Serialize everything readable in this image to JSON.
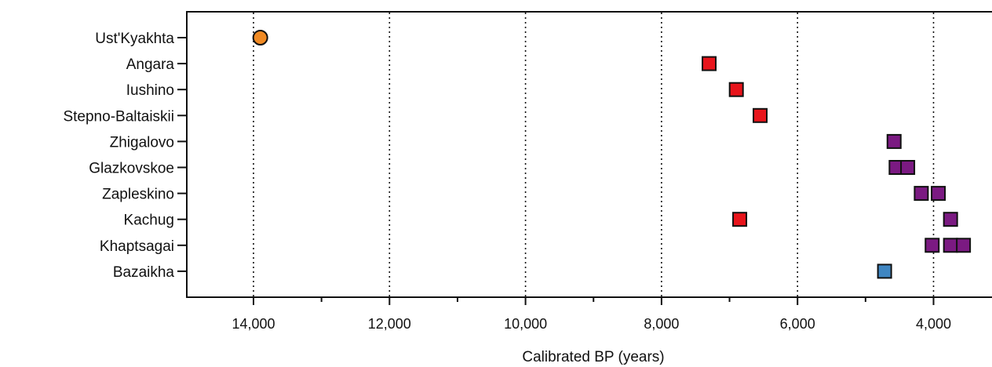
{
  "chart_data": {
    "type": "scatter",
    "title": "",
    "xlabel": "Calibrated BP (years)",
    "ylabel": "",
    "xlim": [
      15000,
      3000
    ],
    "x_reversed": true,
    "x_major_ticks": [
      14000,
      12000,
      10000,
      8000,
      6000,
      4000
    ],
    "x_major_tick_labels": [
      "14,000",
      "12,000",
      "10,000",
      "8,000",
      "6,000",
      "4,000"
    ],
    "x_minor_ticks": [
      13000,
      11000,
      9000,
      7000,
      5000
    ],
    "gridlines_at_major_ticks": true,
    "grid_style": "dotted vertical",
    "categories": [
      "Ust'Kyakhta",
      "Angara",
      "Iushino",
      "Stepno-Baltaiskii",
      "Zhigalovo",
      "Glazkovskoe",
      "Zapleskino",
      "Kachug",
      "Khaptsagai",
      "Bazaikha"
    ],
    "marker_colors": {
      "orange": "#f08a24",
      "red": "#e8141b",
      "purple": "#7b1a82",
      "blue": "#3f86c2"
    },
    "points": [
      {
        "site": "Ust'Kyakhta",
        "x": 13900,
        "marker": "circle",
        "color": "orange"
      },
      {
        "site": "Angara",
        "x": 7300,
        "marker": "square",
        "color": "red"
      },
      {
        "site": "Iushino",
        "x": 6900,
        "marker": "square",
        "color": "red"
      },
      {
        "site": "Stepno-Baltaiskii",
        "x": 6550,
        "marker": "square",
        "color": "red"
      },
      {
        "site": "Zhigalovo",
        "x": 4580,
        "marker": "square",
        "color": "purple"
      },
      {
        "site": "Glazkovskoe",
        "x": 4550,
        "marker": "square",
        "color": "purple"
      },
      {
        "site": "Glazkovskoe",
        "x": 4380,
        "marker": "square",
        "color": "purple"
      },
      {
        "site": "Zapleskino",
        "x": 4180,
        "marker": "square",
        "color": "purple"
      },
      {
        "site": "Zapleskino",
        "x": 3930,
        "marker": "square",
        "color": "purple"
      },
      {
        "site": "Kachug",
        "x": 6850,
        "marker": "square",
        "color": "red"
      },
      {
        "site": "Kachug",
        "x": 3750,
        "marker": "square",
        "color": "purple"
      },
      {
        "site": "Khaptsagai",
        "x": 4020,
        "marker": "square",
        "color": "purple"
      },
      {
        "site": "Khaptsagai",
        "x": 3750,
        "marker": "square",
        "color": "purple"
      },
      {
        "site": "Khaptsagai",
        "x": 3560,
        "marker": "square",
        "color": "purple"
      },
      {
        "site": "Bazaikha",
        "x": 4720,
        "marker": "square",
        "color": "blue"
      }
    ]
  }
}
